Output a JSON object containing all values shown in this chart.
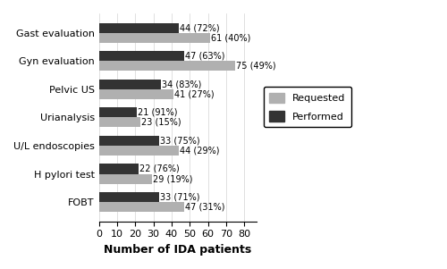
{
  "categories": [
    "Gast evaluation",
    "Gyn evaluation",
    "Pelvic US",
    "Urianalysis",
    "U/L endoscopies",
    "H pylori test",
    "FOBT"
  ],
  "requested": [
    61,
    75,
    41,
    23,
    44,
    29,
    47
  ],
  "performed": [
    44,
    47,
    34,
    21,
    33,
    22,
    33
  ],
  "requested_labels": [
    "61 (40%)",
    "75 (49%)",
    "41 (27%)",
    "23 (15%)",
    "44 (29%)",
    "29 (19%)",
    "47 (31%)"
  ],
  "performed_labels": [
    "44 (72%)",
    "47 (63%)",
    "34 (83%)",
    "21 (91%)",
    "33 (75%)",
    "22 (76%)",
    "33 (71%)"
  ],
  "requested_color": "#b0b0b0",
  "performed_color": "#333333",
  "xlabel": "Number of IDA patients",
  "xlim": [
    0,
    87
  ],
  "xticks": [
    0,
    10,
    20,
    30,
    40,
    50,
    60,
    70,
    80
  ],
  "legend_requested": "Requested",
  "legend_performed": "Performed",
  "bar_height": 0.35,
  "label_fontsize": 7,
  "tick_fontsize": 8,
  "xlabel_fontsize": 9
}
